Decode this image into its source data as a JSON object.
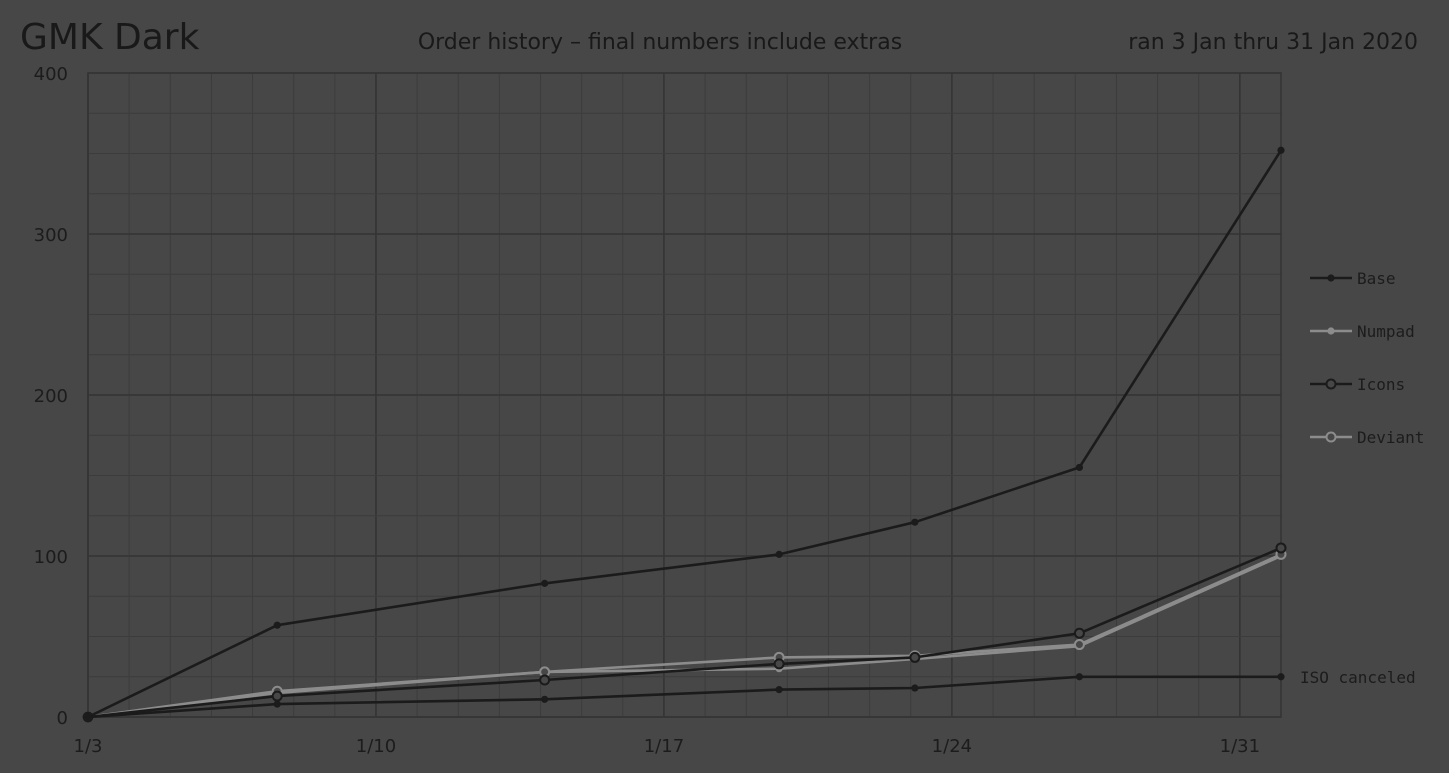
{
  "header": {
    "title": "GMK Dark",
    "subtitle": "Order history – final numbers include extras",
    "date_range": "ran 3 Jan thru 31 Jan 2020"
  },
  "colors": {
    "background": "#474747",
    "grid_major": "#343434",
    "grid_minor": "#3c3c3c",
    "text": "#1c1c1c",
    "dark_series": "#1b1b1b",
    "light_series": "#8c8c8c"
  },
  "chart_data": {
    "type": "line",
    "title": "Order history – final numbers include extras",
    "xlabel": "",
    "ylabel": "",
    "x_ticks": [
      {
        "day": 3,
        "label": "1/3"
      },
      {
        "day": 10,
        "label": "1/10"
      },
      {
        "day": 17,
        "label": "1/17"
      },
      {
        "day": 24,
        "label": "1/24"
      },
      {
        "day": 31,
        "label": "1/31"
      }
    ],
    "y_ticks": [
      0,
      100,
      200,
      300,
      400
    ],
    "xlim": [
      3,
      32
    ],
    "ylim": [
      0,
      400
    ],
    "grid": true,
    "legend_position": "right",
    "series": [
      {
        "name": "Base",
        "color": "#1b1b1b",
        "marker": "filled",
        "points": [
          [
            3,
            0
          ],
          [
            7.6,
            57
          ],
          [
            14.1,
            83
          ],
          [
            19.8,
            101
          ],
          [
            23.1,
            121
          ],
          [
            27.1,
            155
          ],
          [
            32,
            352
          ]
        ]
      },
      {
        "name": "Numpad",
        "color": "#8c8c8c",
        "marker": "filled",
        "points": [
          [
            3,
            0
          ],
          [
            7.6,
            15
          ],
          [
            14.1,
            28
          ],
          [
            19.8,
            30
          ],
          [
            23.1,
            36
          ],
          [
            27.1,
            44
          ],
          [
            32,
            100
          ]
        ]
      },
      {
        "name": "Icons",
        "color": "#1b1b1b",
        "marker": "hollow",
        "points": [
          [
            3,
            0
          ],
          [
            7.6,
            13
          ],
          [
            14.1,
            23
          ],
          [
            19.8,
            33
          ],
          [
            23.1,
            37
          ],
          [
            27.1,
            52
          ],
          [
            32,
            105
          ]
        ]
      },
      {
        "name": "Deviant",
        "color": "#8c8c8c",
        "marker": "hollow",
        "points": [
          [
            3,
            0
          ],
          [
            7.6,
            16
          ],
          [
            14.1,
            28
          ],
          [
            19.8,
            37
          ],
          [
            23.1,
            38
          ],
          [
            27.1,
            45
          ],
          [
            32,
            101
          ]
        ]
      },
      {
        "name": "ISO canceled",
        "color": "#1b1b1b",
        "marker": "filled",
        "label_at_end": true,
        "points": [
          [
            3,
            0
          ],
          [
            7.6,
            8
          ],
          [
            14.1,
            11
          ],
          [
            19.8,
            17
          ],
          [
            23.1,
            18
          ],
          [
            27.1,
            25
          ],
          [
            32,
            25
          ]
        ]
      }
    ],
    "legend": [
      "Base",
      "Numpad",
      "Icons",
      "Deviant"
    ],
    "end_label": "ISO canceled"
  }
}
